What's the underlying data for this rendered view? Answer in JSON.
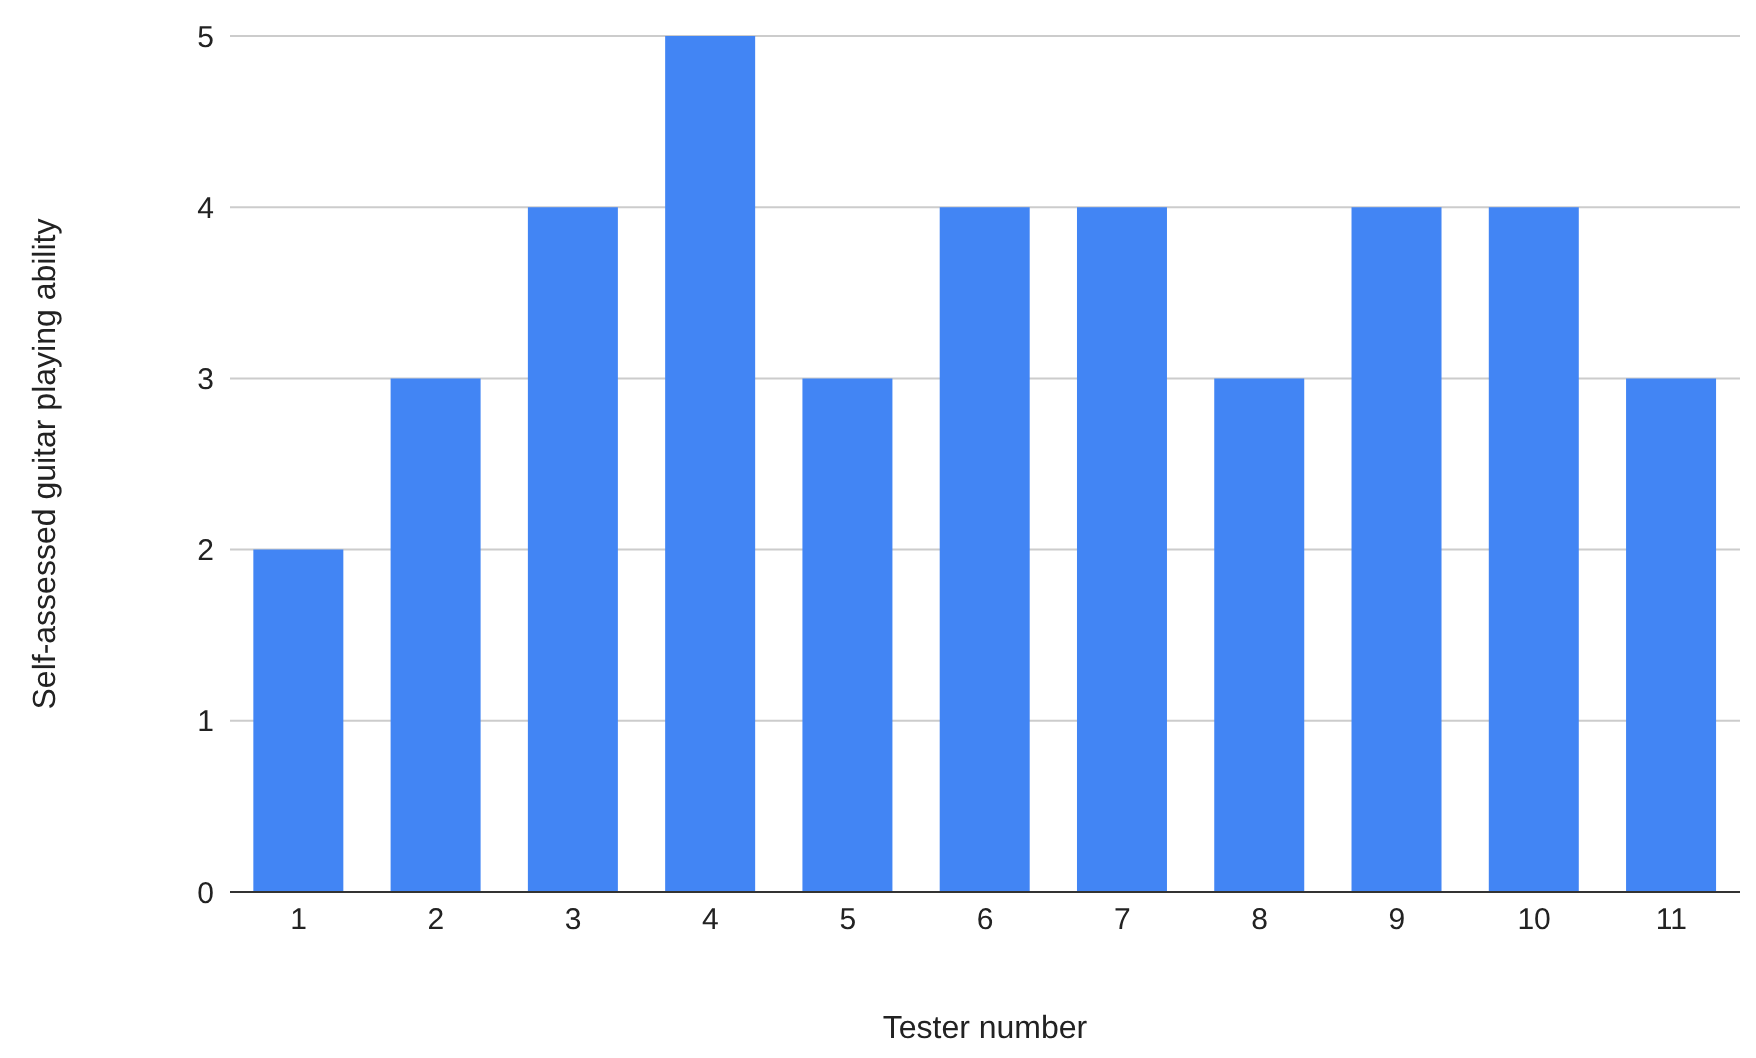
{
  "chart_data": {
    "type": "bar",
    "xlabel": "Tester number",
    "ylabel": "Self-assessed guitar playing ability",
    "categories": [
      "1",
      "2",
      "3",
      "4",
      "5",
      "6",
      "7",
      "8",
      "9",
      "10",
      "11"
    ],
    "values": [
      2,
      3,
      4,
      5,
      3,
      4,
      4,
      3,
      4,
      4,
      3
    ],
    "color": "#4285f4",
    "ylim": [
      0,
      5
    ],
    "yticks": [
      0,
      1,
      2,
      3,
      4,
      5
    ],
    "grid": "y"
  }
}
